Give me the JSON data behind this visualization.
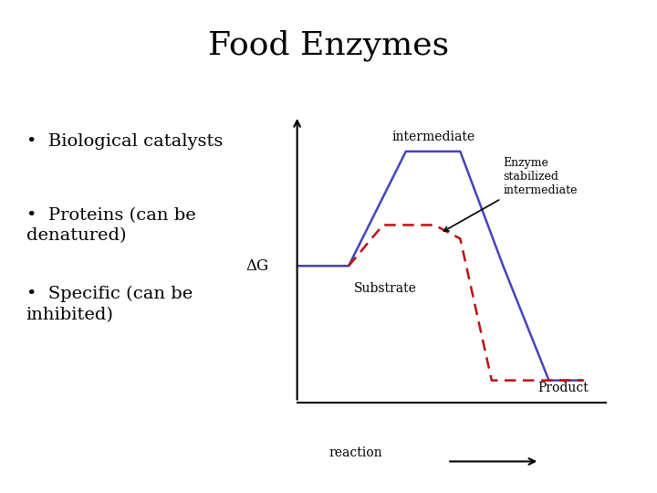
{
  "title": "Food Enzymes",
  "title_fontsize": 26,
  "title_fontfamily": "serif",
  "bullet_points": [
    "Biological catalysts",
    "Proteins (can be\ndenatured)",
    "Specific (can be\ninhibited)"
  ],
  "bullet_fontsize": 14,
  "background_color": "#ffffff",
  "blue_line_color": "#4444bb",
  "red_dashed_color": "#bb1111",
  "black_line_color": "#000000",
  "label_intermediate": "intermediate",
  "label_substrate": "Substrate",
  "label_product": "Product",
  "label_reaction": "reaction",
  "label_deltaG": "ΔG",
  "label_enzyme": "Enzyme\nstabilized\nintermediate",
  "blue_x": [
    0.0,
    0.18,
    0.38,
    0.57,
    0.72,
    0.88,
    1.0
  ],
  "blue_y": [
    0.5,
    0.5,
    0.92,
    0.92,
    0.5,
    0.08,
    0.08
  ],
  "red_x": [
    0.18,
    0.3,
    0.48,
    0.57,
    0.68,
    0.82,
    1.0
  ],
  "red_y": [
    0.5,
    0.65,
    0.65,
    0.6,
    0.08,
    0.08,
    0.08
  ]
}
